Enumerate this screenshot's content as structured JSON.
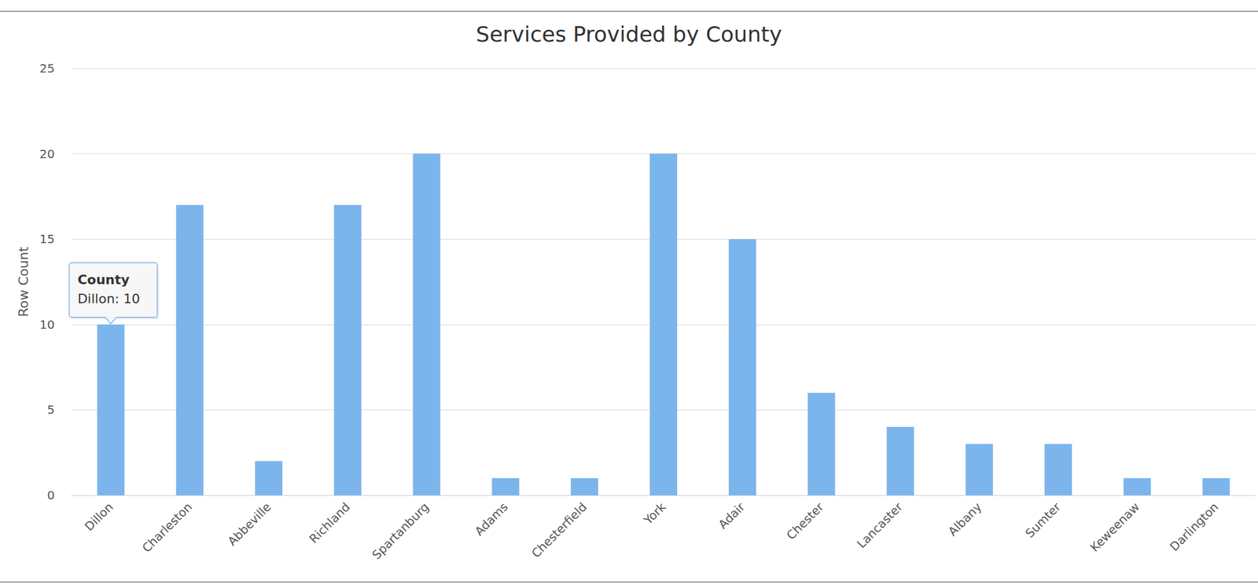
{
  "chart_data": {
    "type": "bar",
    "title": "Services Provided by County",
    "y_label": "Row Count",
    "categories": [
      "Dillon",
      "Charleston",
      "Abbeville",
      "Richland",
      "Spartanburg",
      "Adams",
      "Chesterfield",
      "York",
      "Adair",
      "Chester",
      "Lancaster",
      "Albany",
      "Sumter",
      "Keweenaw",
      "Darlington"
    ],
    "values": [
      10,
      17,
      2,
      17,
      20,
      1,
      1,
      20,
      15,
      6,
      4,
      3,
      3,
      1,
      1
    ],
    "color": "#7cb5ec",
    "ylim": [
      0,
      25
    ],
    "yticks": [
      0,
      5,
      10,
      15,
      20,
      25
    ],
    "grid": true,
    "annotations": [
      {
        "title": "County",
        "text": "Dillon: 10",
        "category": "Dillon"
      }
    ]
  }
}
